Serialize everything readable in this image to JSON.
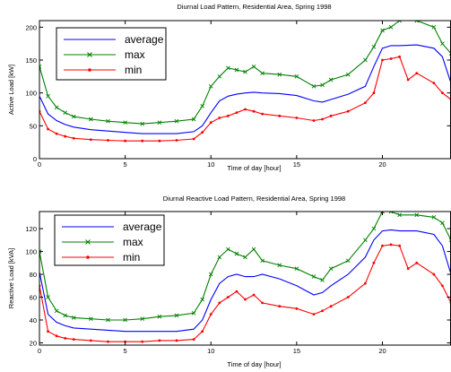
{
  "chart_data": [
    {
      "type": "line",
      "title": "Diurnal Load Pattern, Residential Area, Spring 1998",
      "xlabel": "Time of day [hour]",
      "ylabel": "Active Load [kW]",
      "xlim": [
        0,
        24
      ],
      "ylim": [
        0,
        210
      ],
      "xticks": [
        "0",
        "5",
        "10",
        "15",
        "20"
      ],
      "yticks": [
        "0",
        "50",
        "100",
        "150",
        "200"
      ],
      "grid": false,
      "legend_position": "top-left",
      "series": [
        {
          "name": "average",
          "color": "#0000ff",
          "marker": "none",
          "x": [
            0,
            0.5,
            1,
            1.5,
            2,
            3,
            4,
            5,
            6,
            7,
            8,
            9,
            9.5,
            10,
            10.5,
            11,
            11.5,
            12,
            12.5,
            13,
            14,
            15,
            16,
            16.5,
            17,
            18,
            19,
            19.5,
            20,
            20.5,
            21,
            22,
            23,
            23.5,
            24
          ],
          "y": [
            95,
            68,
            58,
            52,
            48,
            44,
            42,
            40,
            38,
            38,
            38,
            41,
            50,
            70,
            88,
            95,
            98,
            100,
            101,
            100,
            99,
            96,
            88,
            86,
            90,
            98,
            110,
            140,
            168,
            172,
            172,
            173,
            168,
            155,
            115
          ]
        },
        {
          "name": "max",
          "color": "#008000",
          "marker": "x",
          "x": [
            0,
            0.5,
            1,
            1.5,
            2,
            3,
            4,
            5,
            6,
            7,
            8,
            9,
            9.5,
            10,
            10.5,
            11,
            11.5,
            12,
            12.5,
            13,
            14,
            15,
            16,
            16.5,
            17,
            18,
            19,
            19.5,
            20,
            20.5,
            21,
            22,
            23,
            23.5,
            24
          ],
          "y": [
            140,
            95,
            78,
            70,
            64,
            60,
            57,
            55,
            53,
            55,
            57,
            60,
            80,
            110,
            125,
            138,
            135,
            132,
            140,
            130,
            128,
            125,
            110,
            112,
            120,
            128,
            150,
            170,
            195,
            200,
            210,
            210,
            200,
            175,
            160
          ]
        },
        {
          "name": "min",
          "color": "#ff0000",
          "marker": "dot",
          "x": [
            0,
            0.5,
            1,
            1.5,
            2,
            3,
            4,
            5,
            6,
            7,
            8,
            9,
            9.5,
            10,
            10.5,
            11,
            11.5,
            12,
            12.5,
            13,
            14,
            15,
            16,
            16.5,
            17,
            18,
            19,
            19.5,
            20,
            20.5,
            21,
            21.5,
            22,
            23,
            23.5,
            24
          ],
          "y": [
            72,
            45,
            38,
            34,
            31,
            29,
            28,
            27,
            27,
            27,
            28,
            30,
            40,
            55,
            62,
            65,
            70,
            75,
            72,
            68,
            65,
            62,
            58,
            60,
            65,
            72,
            85,
            100,
            150,
            152,
            155,
            120,
            130,
            115,
            100,
            90
          ]
        }
      ]
    },
    {
      "type": "line",
      "title": "Diurnal Reactive Load Pattern, Residential Area, Spring 1998",
      "xlabel": "Time of day [hour]",
      "ylabel": "Reactive Load [kVA]",
      "xlim": [
        0,
        24
      ],
      "ylim": [
        18,
        135
      ],
      "xticks": [
        "0",
        "5",
        "10",
        "15",
        "20"
      ],
      "yticks": [
        "20",
        "40",
        "60",
        "80",
        "100",
        "120"
      ],
      "grid": false,
      "legend_position": "top-left",
      "series": [
        {
          "name": "average",
          "color": "#0000ff",
          "marker": "none",
          "x": [
            0,
            0.5,
            1,
            1.5,
            2,
            3,
            4,
            5,
            6,
            7,
            8,
            9,
            9.5,
            10,
            10.5,
            11,
            11.5,
            12,
            12.5,
            13,
            14,
            15,
            16,
            16.5,
            17,
            18,
            19,
            19.5,
            20,
            20.5,
            21,
            22,
            23,
            23.5,
            24
          ],
          "y": [
            82,
            45,
            38,
            35,
            33,
            32,
            31,
            30,
            30,
            30,
            30,
            32,
            40,
            58,
            72,
            78,
            80,
            78,
            78,
            80,
            76,
            70,
            62,
            64,
            70,
            80,
            95,
            110,
            118,
            119,
            118,
            118,
            115,
            105,
            80
          ]
        },
        {
          "name": "max",
          "color": "#008000",
          "marker": "x",
          "x": [
            0,
            0.5,
            1,
            1.5,
            2,
            3,
            4,
            5,
            6,
            7,
            8,
            9,
            9.5,
            10,
            10.5,
            11,
            11.5,
            12,
            12.5,
            13,
            14,
            15,
            16,
            16.5,
            17,
            18,
            19,
            19.5,
            20,
            20.5,
            21,
            22,
            23,
            23.5,
            24
          ],
          "y": [
            100,
            60,
            48,
            44,
            42,
            41,
            40,
            40,
            41,
            43,
            44,
            46,
            58,
            80,
            95,
            102,
            98,
            95,
            102,
            92,
            88,
            85,
            78,
            75,
            85,
            92,
            110,
            120,
            135,
            135,
            132,
            132,
            130,
            125,
            110
          ]
        },
        {
          "name": "min",
          "color": "#ff0000",
          "marker": "dot",
          "x": [
            0,
            0.5,
            1,
            1.5,
            2,
            3,
            4,
            5,
            6,
            7,
            8,
            9,
            9.5,
            10,
            10.5,
            11,
            11.5,
            12,
            12.5,
            13,
            14,
            15,
            16,
            16.5,
            17,
            18,
            19,
            19.5,
            20,
            20.5,
            21,
            21.5,
            22,
            23,
            23.5,
            24
          ],
          "y": [
            70,
            30,
            26,
            24,
            23,
            22,
            21,
            21,
            21,
            22,
            22,
            23,
            30,
            45,
            55,
            60,
            65,
            58,
            62,
            55,
            52,
            50,
            45,
            48,
            52,
            60,
            72,
            90,
            105,
            106,
            105,
            85,
            90,
            80,
            70,
            55
          ]
        }
      ]
    }
  ]
}
